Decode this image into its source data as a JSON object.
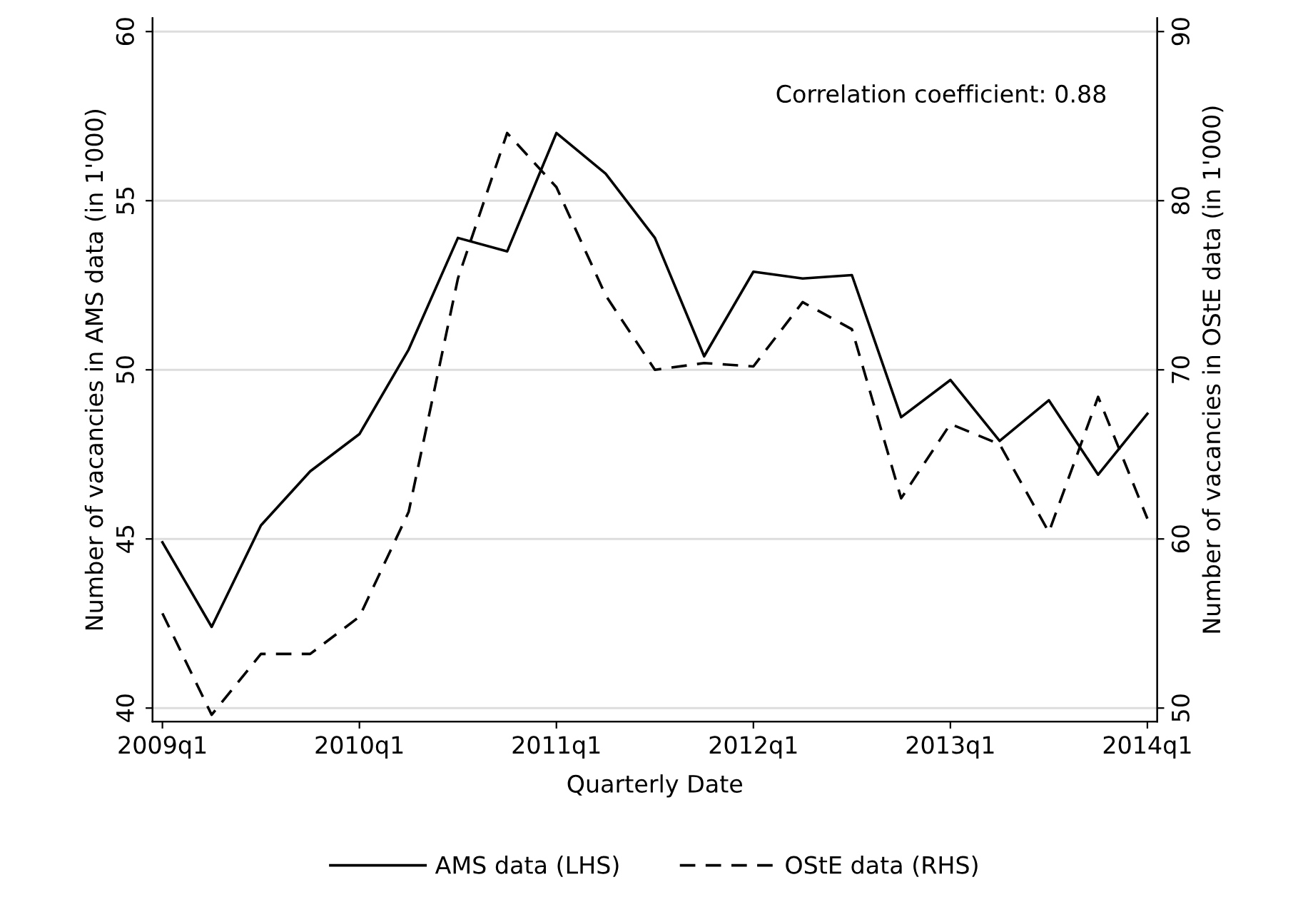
{
  "chart_data": {
    "type": "line",
    "xlabel": "Quarterly Date",
    "ylabel": "Number of vacancies in AMS data (in 1'000)",
    "y2label": "Number of vacancies in OStE data (in 1'000)",
    "annotations": [
      "Correlation coefficient: 0.88"
    ],
    "categories": [
      "2009q1",
      null,
      null,
      null,
      "2010q1",
      null,
      null,
      null,
      "2011q1",
      null,
      null,
      null,
      "2012q1",
      null,
      null,
      null,
      "2013q1",
      null,
      null,
      null,
      "2014q1"
    ],
    "series": [
      {
        "name": "AMS data (LHS)",
        "color": "#000000",
        "line_style": "solid",
        "values": [
          44.9,
          42.4,
          45.4,
          47.0,
          48.1,
          50.6,
          53.9,
          53.5,
          57.0,
          55.8,
          53.9,
          50.4,
          52.9,
          52.7,
          52.8,
          48.6,
          49.7,
          47.9,
          49.1,
          46.9,
          48.7
        ]
      },
      {
        "name": "OStE data (RHS)",
        "color": "#000000",
        "line_style": "dashed",
        "axis": "y2",
        "values": [
          55.6,
          49.6,
          53.2,
          53.2,
          55.4,
          61.6,
          75.4,
          84.0,
          80.8,
          74.4,
          70.0,
          70.4,
          70.2,
          74.0,
          72.4,
          62.4,
          66.8,
          65.6,
          60.4,
          68.4,
          61.2
        ]
      }
    ],
    "ylim": [
      39.6,
      60.4
    ],
    "yticks": [
      40,
      45,
      50,
      55,
      60
    ],
    "y2lim": [
      49.2,
      90.8
    ],
    "y2ticks": [
      50,
      60,
      70,
      80,
      90
    ],
    "grid": "y",
    "legend": "bottom",
    "marker": "none"
  }
}
